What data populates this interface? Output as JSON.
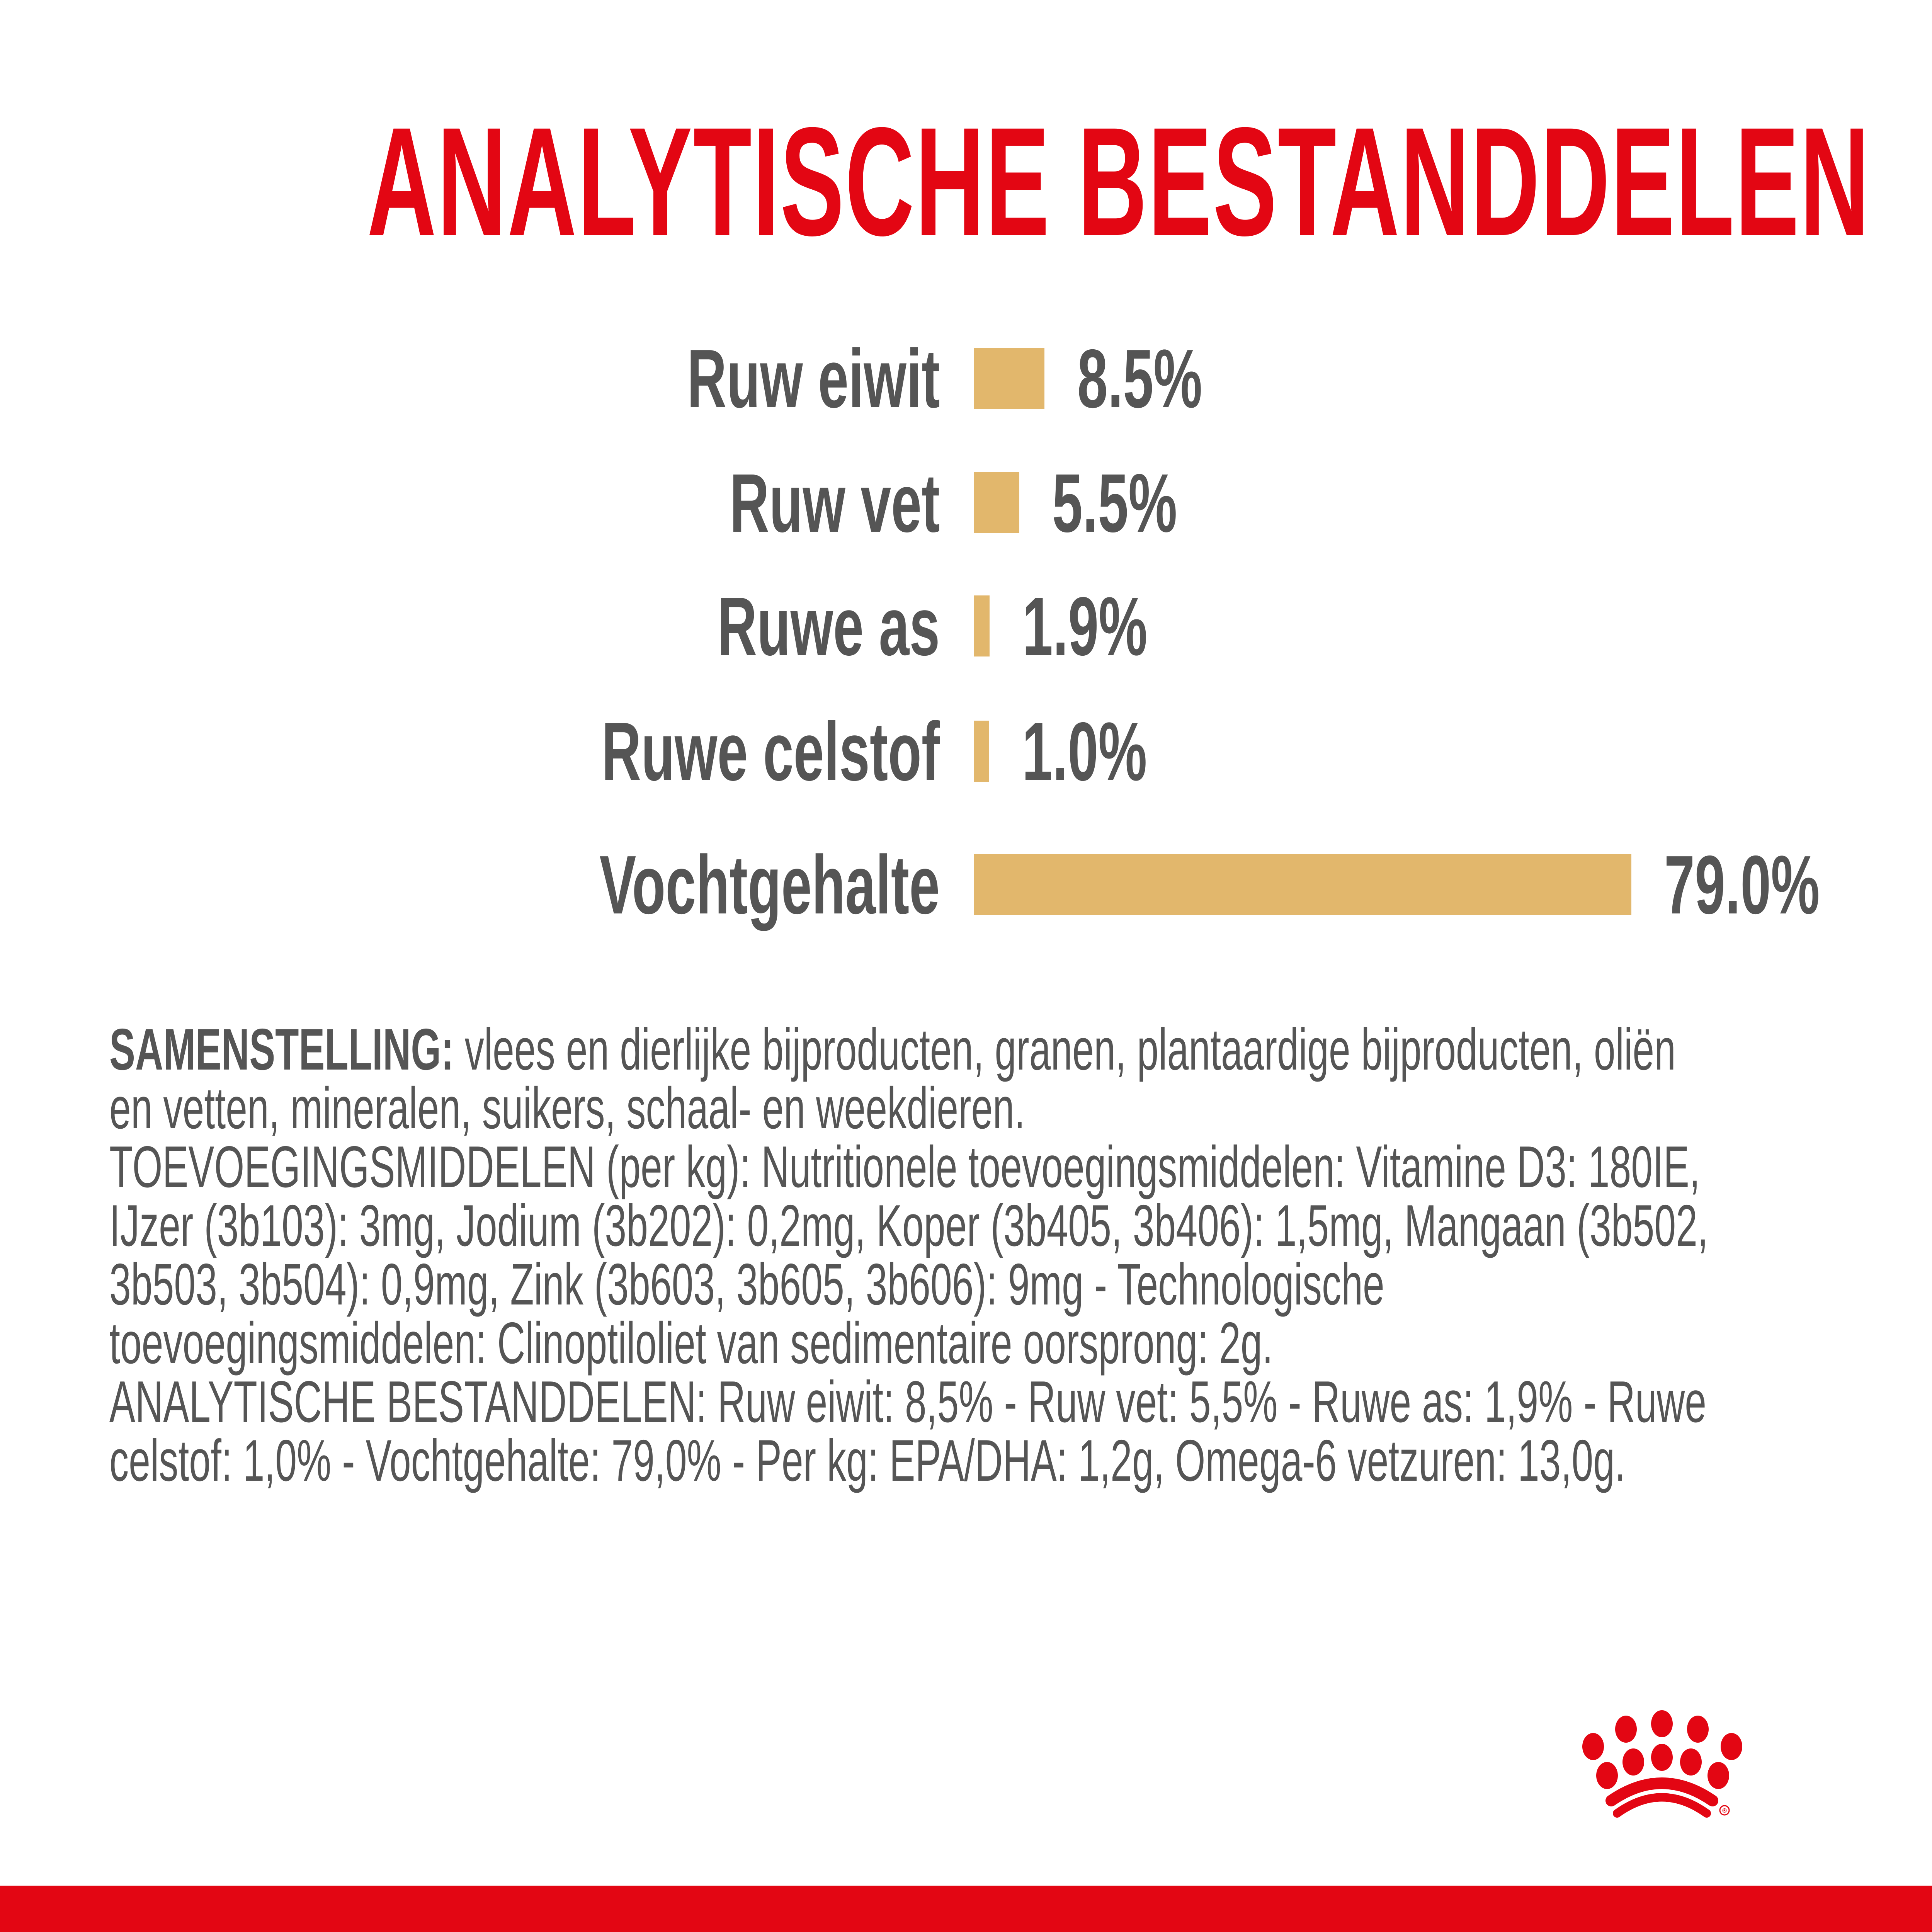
{
  "title": "ANALYTISCHE BESTANDDELEN",
  "colors": {
    "brand_red": "#E30613",
    "bar_gold": "#E2B76C",
    "text_gray": "#555555"
  },
  "chart_data": {
    "type": "bar",
    "orientation": "horizontal",
    "title": "ANALYTISCHE BESTANDDELEN",
    "categories": [
      "Ruw eiwit",
      "Ruw vet",
      "Ruwe as",
      "Ruwe celstof",
      "Vochtgehalte"
    ],
    "values": [
      8.5,
      5.5,
      1.9,
      1.0,
      79.0
    ],
    "value_labels": [
      "8.5%",
      "5.5%",
      "1.9%",
      "1.0%",
      "79.0%"
    ],
    "unit": "%",
    "xlabel": "",
    "ylabel": "",
    "grid": false,
    "legend": "none"
  },
  "composition": {
    "heading": "SAMENSTELLING:",
    "lines": [
      " vlees en dierlijke bijproducten, granen, plantaardige bijproducten, oliën",
      "en vetten, mineralen, suikers, schaal- en weekdieren.",
      "TOEVOEGINGSMIDDELEN (per kg): Nutritionele toevoegingsmiddelen: Vitamine D3: 180IE,",
      "IJzer (3b103): 3mg, Jodium (3b202): 0,2mg, Koper (3b405, 3b406): 1,5mg, Mangaan (3b502,",
      "3b503, 3b504): 0,9mg, Zink (3b603, 3b605, 3b606): 9mg - Technologische",
      "toevoegingsmiddelen: Clinoptiloliet van sedimentaire oorsprong: 2g.",
      "ANALYTISCHE BESTANDDELEN: Ruw eiwit: 8,5% - Ruw vet: 5,5% - Ruwe as: 1,9% - Ruwe",
      "celstof: 1,0% - Vochtgehalte: 79,0% - Per kg: EPA/DHA: 1,2g, Omega-6 vetzuren: 13,0g."
    ]
  },
  "logo": {
    "icon": "crown-logo-icon",
    "registered_mark": "®"
  }
}
